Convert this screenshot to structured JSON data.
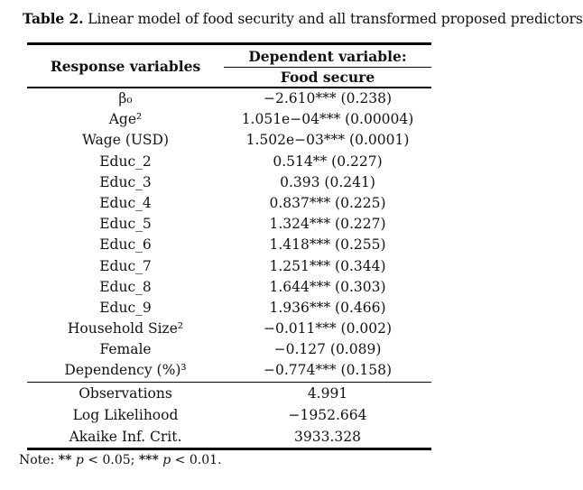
{
  "caption": {
    "label": "Table 2.",
    "text": "Linear model of food security and all transformed proposed predictors."
  },
  "table": {
    "response_header": "Response variables",
    "dependent_header": "Dependent variable:",
    "dependent_sub_header": "Food secure",
    "rows": [
      {
        "label": "β₀",
        "value": "−2.610*** (0.238)"
      },
      {
        "label": "Age²",
        "value": "1.051e−04*** (0.00004)"
      },
      {
        "label": "Wage (USD)",
        "value": "1.502e−03*** (0.0001)"
      },
      {
        "label": "Educ_2",
        "value": "0.514** (0.227)"
      },
      {
        "label": "Educ_3",
        "value": "0.393 (0.241)"
      },
      {
        "label": "Educ_4",
        "value": "0.837*** (0.225)"
      },
      {
        "label": "Educ_5",
        "value": "1.324*** (0.227)"
      },
      {
        "label": "Educ_6",
        "value": "1.418*** (0.255)"
      },
      {
        "label": "Educ_7",
        "value": "1.251*** (0.344)"
      },
      {
        "label": "Educ_8",
        "value": "1.644*** (0.303)"
      },
      {
        "label": "Educ_9",
        "value": "1.936*** (0.466)"
      },
      {
        "label": "Household Size²",
        "value": "−0.011*** (0.002)"
      },
      {
        "label": "Female",
        "value": "−0.127 (0.089)"
      },
      {
        "label": "Dependency (%)³",
        "value": "−0.774*** (0.158)"
      }
    ],
    "summary": [
      {
        "label": "Observations",
        "value": "4.991"
      },
      {
        "label": "Log Likelihood",
        "value": "−1952.664"
      },
      {
        "label": "Akaike Inf. Crit.",
        "value": "3933.328"
      }
    ]
  },
  "note": {
    "label": "Note:",
    "sig1": "**",
    "p1": "p",
    "cond1": "< 0.05;",
    "sig2": "***",
    "p2": "p",
    "cond2": "< 0.01."
  },
  "colors": {
    "text": "#121212",
    "rule": "#050505",
    "background": "#ffffff"
  }
}
